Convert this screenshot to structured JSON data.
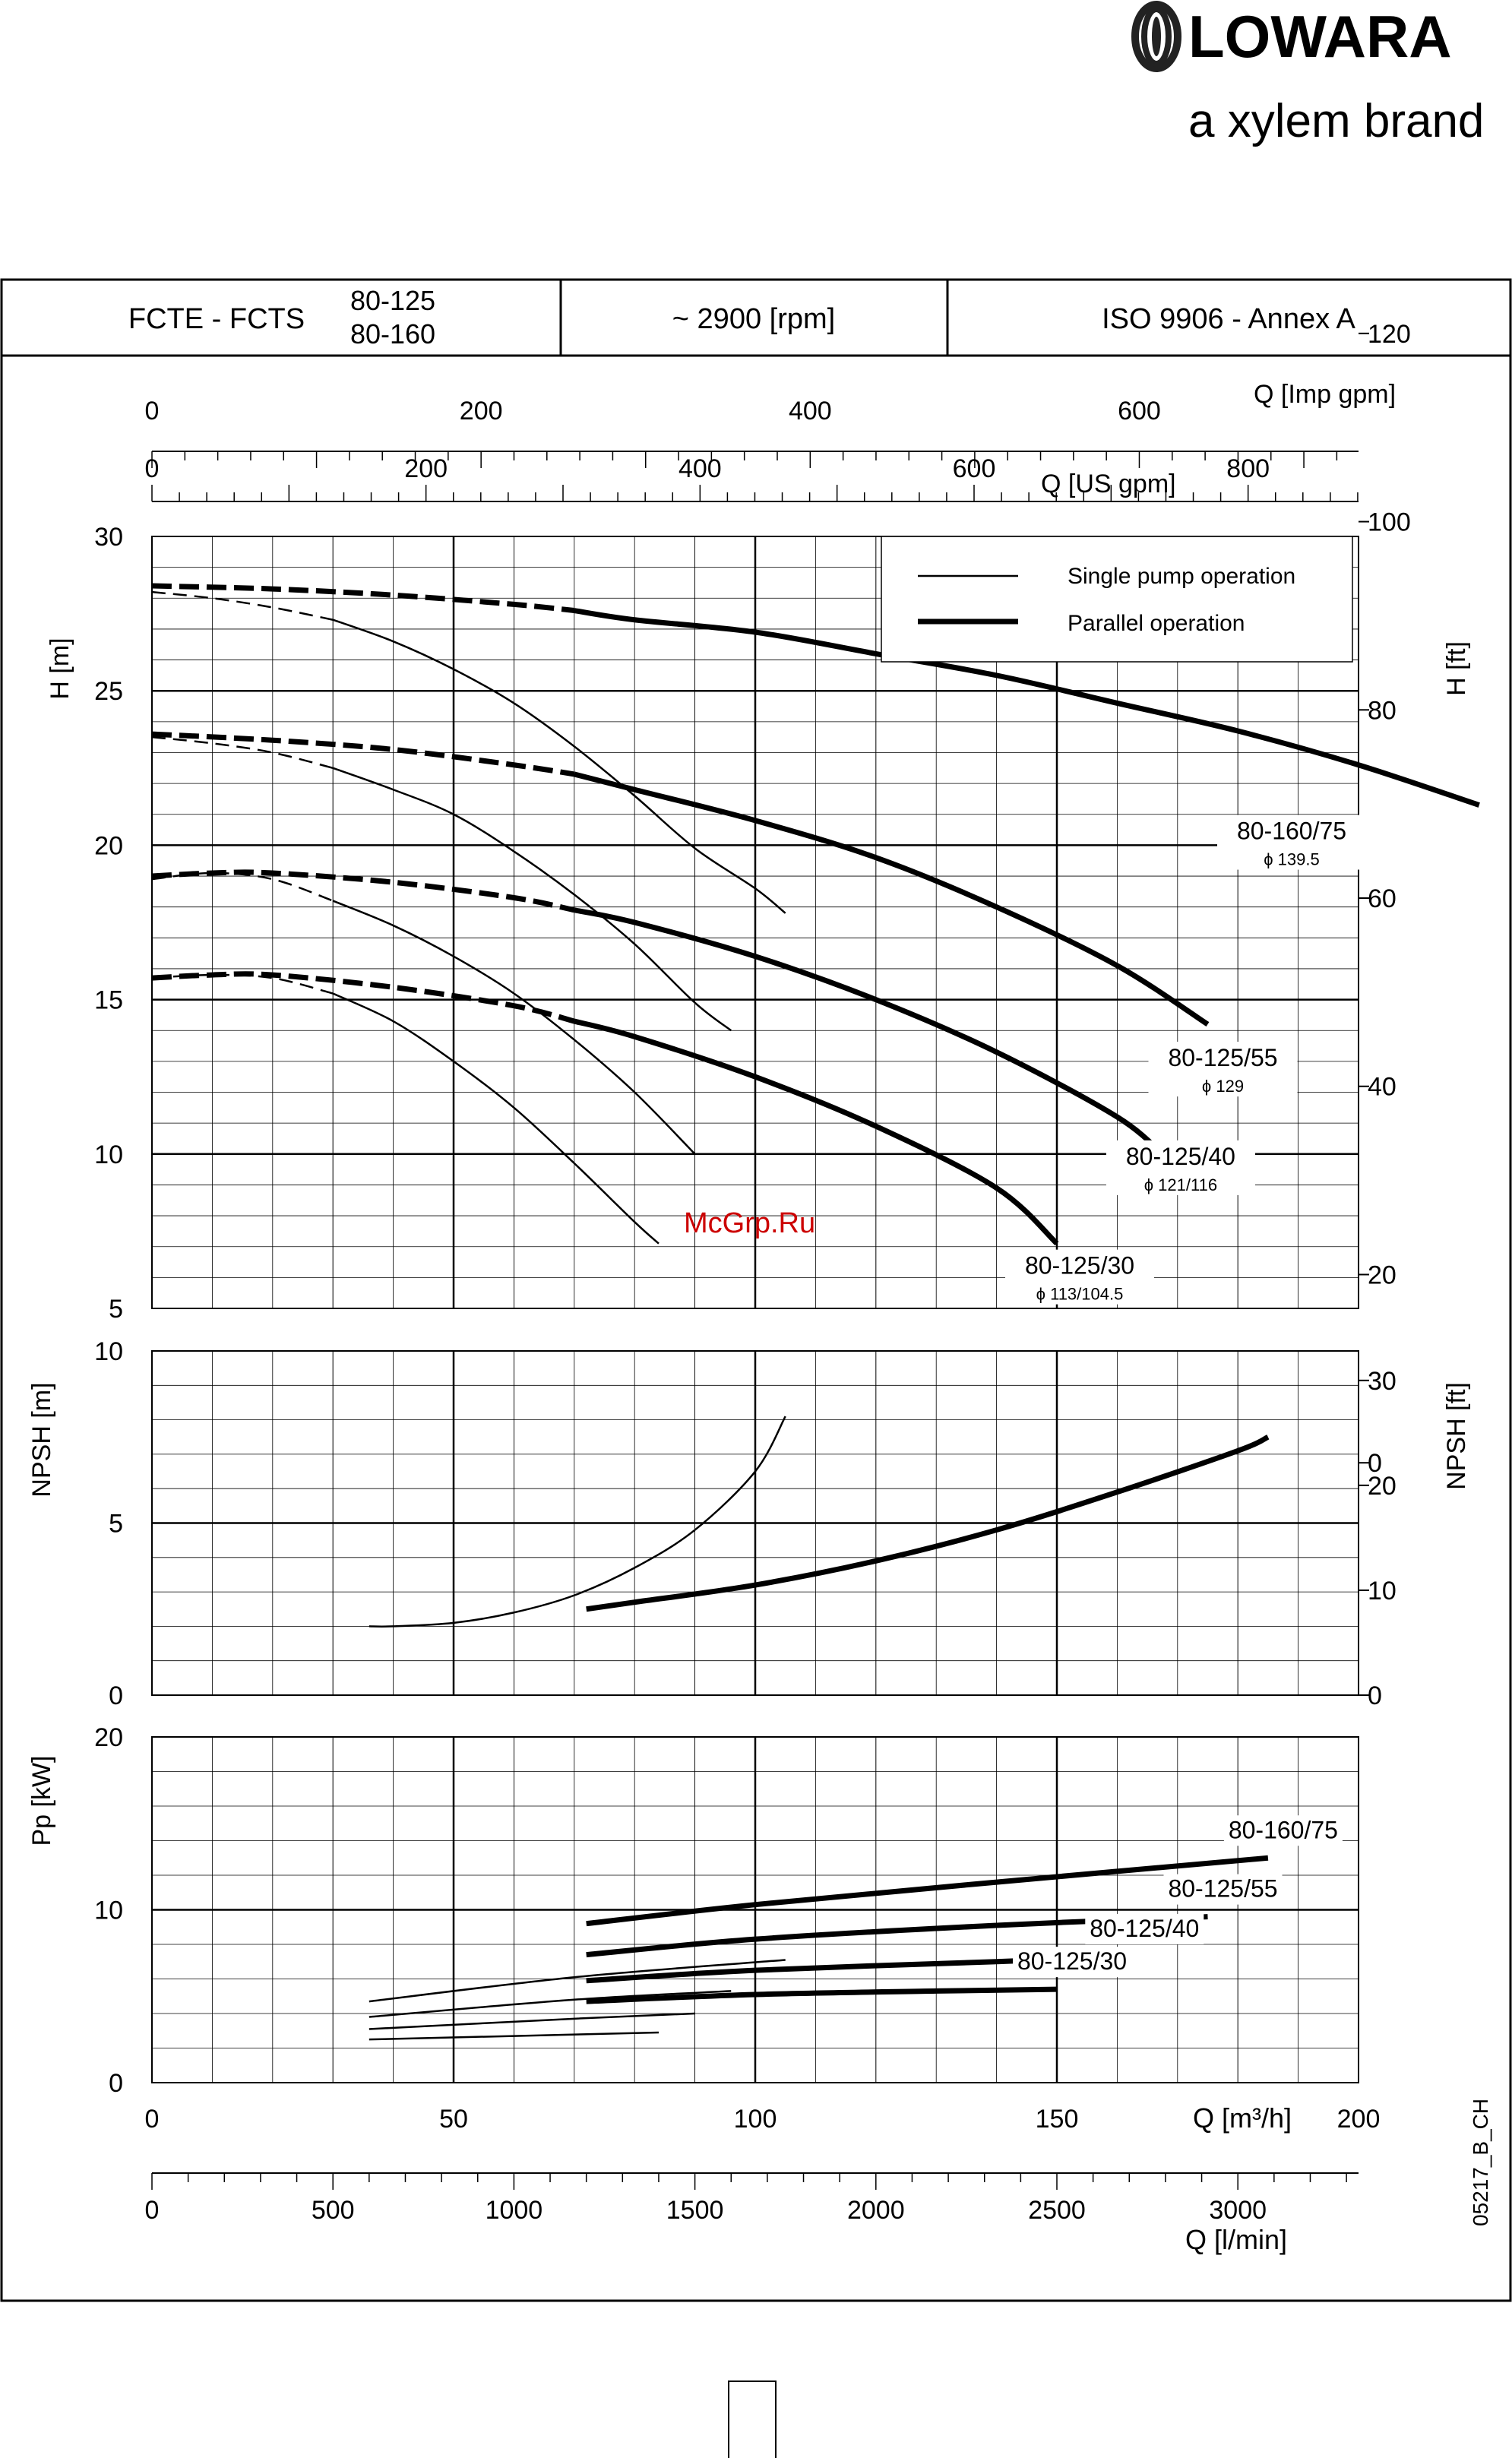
{
  "brand": {
    "name": "LOWARA",
    "tagline": "a xylem brand"
  },
  "header": {
    "series": "FCTE - FCTS",
    "models_line1": "80-125",
    "models_line2": "80-160",
    "speed": "~ 2900 [rpm]",
    "standard": "ISO 9906 - Annex A"
  },
  "drawing_code": "05217_B_CH",
  "watermark": "McGrp.Ru",
  "colors": {
    "line": "#000000",
    "background": "#ffffff",
    "watermark": "#cc0000"
  },
  "chart_data": [
    {
      "type": "line",
      "panel": "head",
      "ylabel": "H [m]",
      "y2label": "H [ft]",
      "ylim": [
        5,
        30
      ],
      "y_ticks": [
        "5",
        "10",
        "15",
        "20",
        "25",
        "30"
      ],
      "y2_ticks": [
        "0",
        "20",
        "40",
        "60",
        "80",
        "100",
        "120"
      ],
      "xlim": [
        0,
        200
      ],
      "grid": true,
      "legend": {
        "placement": "top-right",
        "entries": [
          "Single pump operation",
          "Parallel operation"
        ]
      },
      "top_axis_us": {
        "label": "Q [US gpm]",
        "ticks": [
          "0",
          "200",
          "400",
          "600",
          "800"
        ]
      },
      "top_axis_imp": {
        "label": "Q [Imp gpm]",
        "ticks": [
          "0",
          "200",
          "400",
          "600"
        ]
      },
      "series": [
        {
          "name": "80-160/75",
          "diameter": "ϕ 139.5",
          "mode": "single",
          "x": [
            0,
            10,
            20,
            30,
            40,
            50,
            60,
            70,
            80,
            90,
            100,
            105
          ],
          "y": [
            28.2,
            28.0,
            27.7,
            27.3,
            26.6,
            25.7,
            24.6,
            23.2,
            21.6,
            19.9,
            18.6,
            17.8
          ],
          "dashed_until": 30
        },
        {
          "name": "80-160/75",
          "diameter": "ϕ 139.5",
          "mode": "parallel",
          "x": [
            0,
            20,
            40,
            60,
            70,
            80,
            100,
            120,
            140,
            160,
            180,
            200,
            220
          ],
          "y": [
            28.4,
            28.3,
            28.1,
            27.8,
            27.6,
            27.3,
            26.9,
            26.2,
            25.5,
            24.6,
            23.7,
            22.6,
            21.3
          ],
          "dashed_until": 70
        },
        {
          "name": "80-125/55",
          "diameter": "ϕ 129",
          "mode": "single",
          "x": [
            0,
            10,
            20,
            30,
            40,
            50,
            60,
            70,
            80,
            90,
            96
          ],
          "y": [
            23.5,
            23.3,
            23.0,
            22.5,
            21.8,
            21.0,
            19.8,
            18.4,
            16.8,
            14.9,
            14.0
          ],
          "dashed_until": 30
        },
        {
          "name": "80-125/55",
          "diameter": "ϕ 129",
          "mode": "parallel",
          "x": [
            0,
            20,
            40,
            60,
            70,
            80,
            100,
            120,
            140,
            160,
            175
          ],
          "y": [
            23.6,
            23.4,
            23.1,
            22.6,
            22.3,
            21.8,
            20.8,
            19.6,
            18.0,
            16.1,
            14.2
          ],
          "dashed_until": 70
        },
        {
          "name": "80-125/40",
          "diameter": "ϕ 121/116",
          "mode": "single",
          "x": [
            0,
            10,
            20,
            30,
            40,
            50,
            60,
            70,
            80,
            90
          ],
          "y": [
            18.9,
            19.1,
            18.9,
            18.2,
            17.4,
            16.4,
            15.2,
            13.7,
            12.0,
            10.0
          ],
          "dashed_until": 30
        },
        {
          "name": "80-125/40",
          "diameter": "ϕ 121/116",
          "mode": "parallel",
          "x": [
            0,
            10,
            20,
            40,
            60,
            70,
            80,
            100,
            120,
            140,
            160,
            168
          ],
          "y": [
            19.0,
            19.1,
            19.1,
            18.8,
            18.3,
            17.9,
            17.5,
            16.4,
            15.0,
            13.3,
            11.2,
            9.9
          ],
          "dashed_until": 70
        },
        {
          "name": "80-125/30",
          "diameter": "ϕ 113/104.5",
          "mode": "single",
          "x": [
            0,
            10,
            20,
            30,
            40,
            50,
            60,
            70,
            80,
            84
          ],
          "y": [
            15.7,
            15.8,
            15.7,
            15.2,
            14.3,
            13.0,
            11.5,
            9.7,
            7.8,
            7.1
          ],
          "dashed_until": 30
        },
        {
          "name": "80-125/30",
          "diameter": "ϕ 113/104.5",
          "mode": "parallel",
          "x": [
            0,
            10,
            20,
            40,
            60,
            70,
            80,
            100,
            120,
            140,
            150
          ],
          "y": [
            15.7,
            15.8,
            15.8,
            15.4,
            14.8,
            14.3,
            13.8,
            12.5,
            10.9,
            8.9,
            7.1
          ],
          "dashed_until": 70
        }
      ]
    },
    {
      "type": "line",
      "panel": "npsh",
      "ylabel": "NPSH [m]",
      "y2label": "NPSH [ft]",
      "ylim": [
        0,
        10
      ],
      "y_ticks": [
        "0",
        "5",
        "10"
      ],
      "y2_ticks": [
        "0",
        "10",
        "20",
        "30"
      ],
      "xlim": [
        0,
        200
      ],
      "grid": true,
      "series": [
        {
          "mode": "single",
          "x": [
            36,
            40,
            50,
            60,
            70,
            80,
            90,
            100,
            105
          ],
          "y": [
            2.0,
            2.0,
            2.1,
            2.4,
            2.9,
            3.7,
            4.8,
            6.5,
            8.1
          ]
        },
        {
          "mode": "parallel",
          "x": [
            72,
            80,
            100,
            120,
            140,
            160,
            180,
            185
          ],
          "y": [
            2.5,
            2.7,
            3.2,
            3.9,
            4.8,
            5.9,
            7.1,
            7.5
          ]
        }
      ]
    },
    {
      "type": "line",
      "panel": "power",
      "ylabel": "Pp [kW]",
      "ylim": [
        0,
        20
      ],
      "y_ticks": [
        "0",
        "10",
        "20"
      ],
      "xlim": [
        0,
        200
      ],
      "grid": true,
      "xlabel": "Q [m³/h]",
      "x_ticks": [
        "0",
        "50",
        "100",
        "150",
        "200"
      ],
      "bottom_axis_lmin": {
        "label": "Q [l/min]",
        "ticks": [
          "0",
          "500",
          "1000",
          "1500",
          "2000",
          "2500",
          "3000"
        ]
      },
      "series": [
        {
          "name": "80-160/75",
          "mode": "parallel",
          "x": [
            72,
            100,
            140,
            185
          ],
          "y": [
            9.2,
            10.3,
            11.6,
            13.0
          ]
        },
        {
          "name": "80-160/75",
          "mode": "single",
          "x": [
            36,
            70,
            105
          ],
          "y": [
            4.7,
            6.1,
            7.1
          ]
        },
        {
          "name": "80-125/55",
          "mode": "parallel",
          "x": [
            72,
            100,
            140,
            175
          ],
          "y": [
            7.4,
            8.3,
            9.1,
            9.6
          ]
        },
        {
          "name": "80-125/55",
          "mode": "single",
          "x": [
            36,
            70,
            96
          ],
          "y": [
            3.8,
            4.8,
            5.3
          ]
        },
        {
          "name": "80-125/40",
          "mode": "parallel",
          "x": [
            72,
            100,
            140,
            162
          ],
          "y": [
            5.9,
            6.5,
            7.0,
            7.3
          ]
        },
        {
          "name": "80-125/40",
          "mode": "single",
          "x": [
            36,
            70,
            90
          ],
          "y": [
            3.1,
            3.7,
            4.0
          ]
        },
        {
          "name": "80-125/30",
          "mode": "parallel",
          "x": [
            72,
            100,
            130,
            150
          ],
          "y": [
            4.7,
            5.1,
            5.3,
            5.4
          ]
        },
        {
          "name": "80-125/30",
          "mode": "single",
          "x": [
            36,
            60,
            84
          ],
          "y": [
            2.5,
            2.7,
            2.9
          ]
        }
      ]
    }
  ]
}
